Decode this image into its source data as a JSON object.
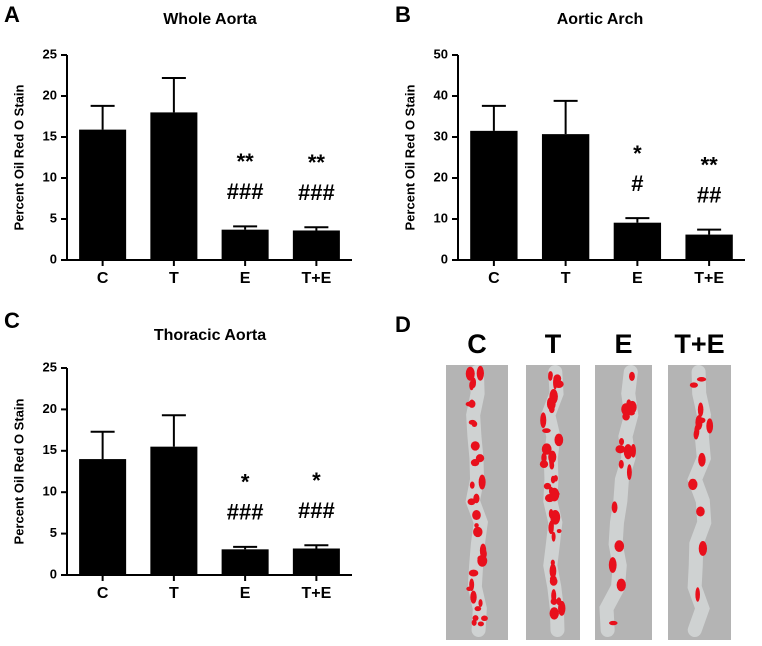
{
  "chart_data": [
    {
      "type": "bar",
      "panel_label": "A",
      "title": "Whole Aorta",
      "y_label": "Percent Oil Red O Stain",
      "categories": [
        "C",
        "T",
        "E",
        "T+E"
      ],
      "values": [
        15.9,
        18.0,
        3.7,
        3.6
      ],
      "errors": [
        2.9,
        4.2,
        0.4,
        0.4
      ],
      "stars": [
        null,
        null,
        "**",
        "**"
      ],
      "hashes": [
        null,
        null,
        "###",
        "###"
      ],
      "color": "#000000",
      "ylim": [
        0,
        25
      ],
      "yticks": [
        0,
        5,
        10,
        15,
        20,
        25
      ]
    },
    {
      "type": "bar",
      "panel_label": "B",
      "title": "Aortic Arch",
      "y_label": "Percent Oil Red O Stain",
      "categories": [
        "C",
        "T",
        "E",
        "T+E"
      ],
      "values": [
        31.5,
        30.7,
        9.1,
        6.2
      ],
      "errors": [
        6.1,
        8.1,
        1.1,
        1.2
      ],
      "stars": [
        null,
        null,
        "*",
        "**"
      ],
      "hashes": [
        null,
        null,
        "#",
        "##"
      ],
      "color": "#000000",
      "ylim": [
        0,
        50
      ],
      "yticks": [
        0,
        10,
        20,
        30,
        40,
        50
      ]
    },
    {
      "type": "bar",
      "panel_label": "C",
      "title": "Thoracic Aorta",
      "y_label": "Percent Oil Red O Stain",
      "categories": [
        "C",
        "T",
        "E",
        "T+E"
      ],
      "values": [
        14.0,
        15.5,
        3.1,
        3.2
      ],
      "errors": [
        3.3,
        3.8,
        0.3,
        0.4
      ],
      "stars": [
        null,
        null,
        "*",
        "*"
      ],
      "hashes": [
        null,
        null,
        "###",
        "###"
      ],
      "color": "#000000",
      "ylim": [
        0,
        25
      ],
      "yticks": [
        0,
        5,
        10,
        15,
        20,
        25
      ]
    }
  ],
  "images": {
    "panel_label": "D",
    "labels": [
      "C",
      "T",
      "E",
      "T+E"
    ]
  }
}
